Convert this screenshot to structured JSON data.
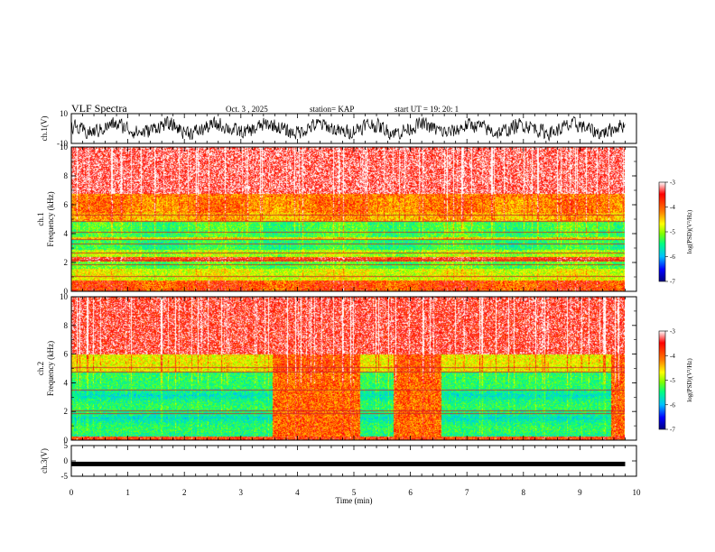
{
  "header": {
    "title": "VLF Spectra",
    "date": "Oct. 3 , 2025",
    "station": "station= KAP",
    "start": "start  UT =    19: 20: 1"
  },
  "chart_data": [
    {
      "id": "ch1-waveform",
      "type": "line",
      "title": "",
      "ylabel": "ch.1(V)",
      "ylim": [
        -10,
        10
      ],
      "yticks": [
        "10",
        "-10"
      ],
      "xlim": [
        0,
        9.8
      ],
      "description_values": {
        "mean": 0,
        "amplitude_approx": 6
      }
    },
    {
      "id": "ch1-spectrogram",
      "type": "heatmap",
      "ylabel": "ch.1\nFrequency (kHz)",
      "ylabel_line1": "ch.1",
      "ylabel_line2": "Frequency  (kHz)",
      "ylim": [
        0,
        10
      ],
      "yticks": [
        "0",
        "2",
        "4",
        "6",
        "8",
        "10"
      ],
      "xlim": [
        0,
        9.8
      ],
      "colorbar": {
        "label": "log(PSD)(V²/Hz)",
        "range": [
          -7,
          -3
        ],
        "ticks": [
          "-3",
          "-4",
          "-5",
          "-6",
          "-7"
        ]
      },
      "bands": [
        {
          "f0": 0.0,
          "f1": 0.8,
          "level": -3.6
        },
        {
          "f0": 0.8,
          "f1": 1.6,
          "level": -4.4
        },
        {
          "f0": 1.6,
          "f1": 2.1,
          "level": -4.9
        },
        {
          "f0": 2.1,
          "f1": 2.4,
          "level": -3.4
        },
        {
          "f0": 2.4,
          "f1": 2.9,
          "level": -4.6
        },
        {
          "f0": 2.9,
          "f1": 3.6,
          "level": -5.1
        },
        {
          "f0": 3.6,
          "f1": 3.8,
          "level": -4.2
        },
        {
          "f0": 3.8,
          "f1": 4.9,
          "level": -5.0
        },
        {
          "f0": 4.9,
          "f1": 5.5,
          "level": -4.0
        },
        {
          "f0": 5.5,
          "f1": 6.8,
          "level": -3.8
        },
        {
          "f0": 6.8,
          "f1": 10.0,
          "level": -3.1
        }
      ],
      "lines_khz": [
        1.05,
        1.85,
        2.2,
        2.7,
        3.3,
        3.6,
        4.1,
        4.9,
        5.3
      ]
    },
    {
      "id": "ch2-spectrogram",
      "type": "heatmap",
      "ylabel_line1": "ch.2",
      "ylabel_line2": "Frequency  (kHz)",
      "ylim": [
        0,
        10
      ],
      "yticks": [
        "0",
        "2",
        "4",
        "6",
        "8",
        "10"
      ],
      "xlim": [
        0,
        9.8
      ],
      "colorbar": {
        "label": "log(PSD)(V²/Hz)",
        "range": [
          -7,
          -3
        ],
        "ticks": [
          "-3",
          "-4",
          "-5",
          "-6",
          "-7"
        ]
      },
      "segments": [
        {
          "t0": 0.0,
          "t1": 3.55,
          "quiet": true
        },
        {
          "t0": 3.55,
          "t1": 5.1,
          "quiet": false
        },
        {
          "t0": 5.1,
          "t1": 5.7,
          "quiet": true
        },
        {
          "t0": 5.7,
          "t1": 6.55,
          "quiet": false
        },
        {
          "t0": 6.55,
          "t1": 9.55,
          "quiet": true
        },
        {
          "t0": 9.55,
          "t1": 9.8,
          "quiet": false
        }
      ],
      "lines_khz": [
        1.9,
        2.1,
        3.5,
        4.8,
        5.1
      ]
    },
    {
      "id": "ch3-waveform",
      "type": "line",
      "ylabel": "ch.3(V)",
      "ylim": [
        -5,
        5
      ],
      "yticks": [
        "5",
        "0",
        "-5"
      ],
      "xlim": [
        0,
        9.8
      ],
      "level": -1.0
    }
  ],
  "xaxis": {
    "label": "Time  (min)",
    "range": [
      0,
      10
    ],
    "ticks": [
      "0",
      "1",
      "2",
      "3",
      "4",
      "5",
      "6",
      "7",
      "8",
      "9",
      "10"
    ]
  },
  "colors": {
    "scale": [
      "#000080",
      "#0000ff",
      "#00bfff",
      "#00ff7f",
      "#7fff00",
      "#ffff00",
      "#ff7f00",
      "#ff0000",
      "#ffffff"
    ]
  }
}
